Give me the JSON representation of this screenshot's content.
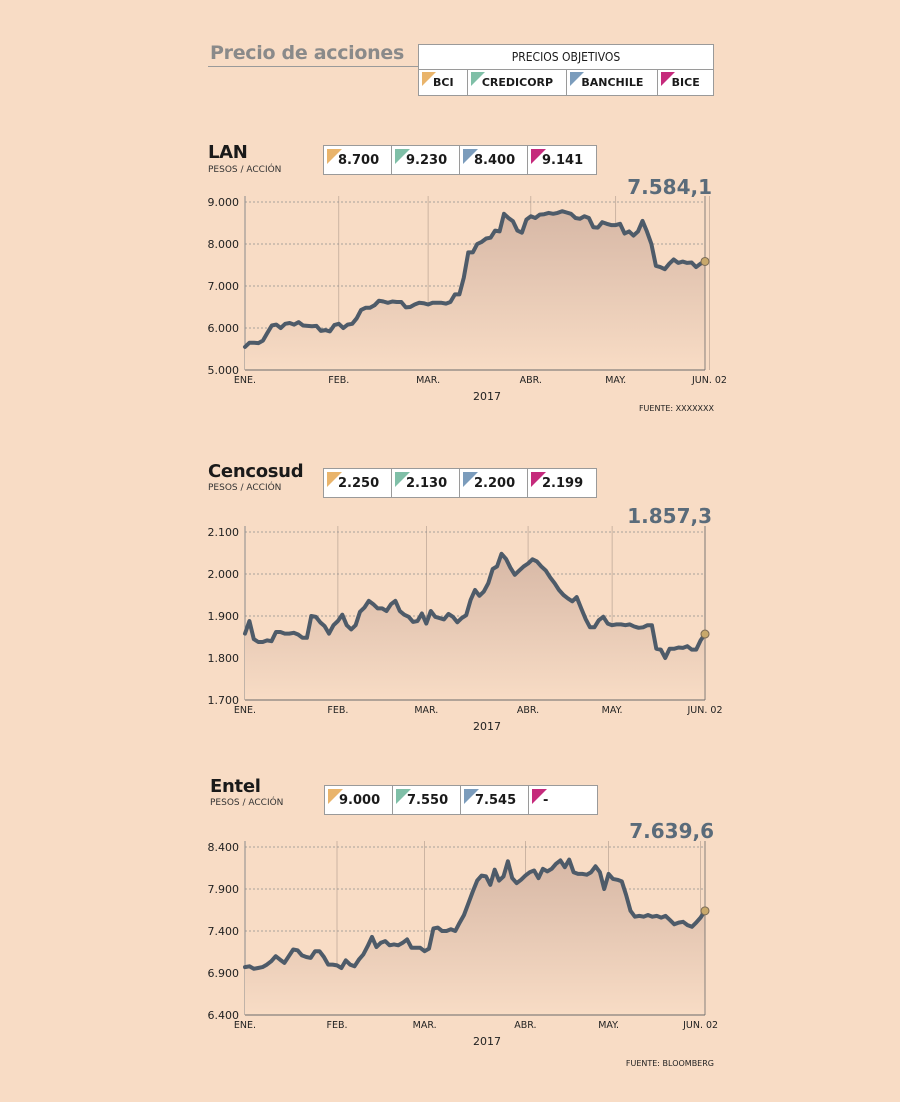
{
  "header": {
    "title": "Precio de acciones"
  },
  "legend": {
    "title": "PRECIOS OBJETIVOS",
    "items": [
      {
        "label": "BCI",
        "color": "#e9b46b"
      },
      {
        "label": "CREDICORP",
        "color": "#7fbfa7"
      },
      {
        "label": "BANCHILE",
        "color": "#7b9cbc"
      },
      {
        "label": "BICE",
        "color": "#c52a7c"
      }
    ]
  },
  "colors": {
    "background": "#f8dcc5",
    "line": "#4e5b69",
    "area_top": "#d7b8a6",
    "marker": "#c8a86b"
  },
  "charts": [
    {
      "name": "LAN",
      "unit": "PESOS / ACCIÓN",
      "targets": [
        "8.700",
        "9.230",
        "8.400",
        "9.141"
      ],
      "last_value": "7.584,1",
      "source": "FUENTE: XXXXXXX"
    },
    {
      "name": "Cencosud",
      "unit": "PESOS / ACCIÓN",
      "targets": [
        "2.250",
        "2.130",
        "2.200",
        "2.199"
      ],
      "last_value": "1.857,3",
      "source": ""
    },
    {
      "name": "Entel",
      "unit": "PESOS / ACCIÓN",
      "targets": [
        "9.000",
        "7.550",
        "7.545",
        "-"
      ],
      "last_value": "7.639,6",
      "source": "FUENTE: BLOOMBERG"
    }
  ],
  "chart_data": [
    {
      "type": "area",
      "title": "LAN",
      "ylabel": "PESOS / ACCIÓN",
      "xlabel": "2017",
      "ylim": [
        5000,
        9000
      ],
      "yticks": [
        "9.000",
        "8.000",
        "7.000",
        "6.000",
        "5.000"
      ],
      "ytick_values": [
        9000,
        8000,
        7000,
        6000,
        5000
      ],
      "xticks": [
        "ENE.",
        "FEB.",
        "MAR.",
        "ABR.",
        "MAY.",
        "JUN. 02"
      ],
      "xtick_positions": [
        0,
        21,
        41,
        64,
        83,
        104
      ],
      "grid": true,
      "series": [
        {
          "values": [
            5550,
            5650,
            5650,
            5640,
            5700,
            5880,
            6060,
            6080,
            6000,
            6100,
            6120,
            6080,
            6140,
            6060,
            6050,
            6040,
            6050,
            5930,
            5950,
            5920,
            6070,
            6100,
            6000,
            6080,
            6100,
            6230,
            6430,
            6480,
            6480,
            6540,
            6650,
            6630,
            6600,
            6630,
            6620,
            6620,
            6490,
            6500,
            6560,
            6600,
            6590,
            6560,
            6600,
            6600,
            6600,
            6580,
            6620,
            6800,
            6800,
            7200,
            7800,
            7800,
            8000,
            8050,
            8130,
            8150,
            8320,
            8300,
            8720,
            8620,
            8540,
            8320,
            8270,
            8580,
            8660,
            8620,
            8700,
            8710,
            8740,
            8720,
            8740,
            8780,
            8750,
            8720,
            8620,
            8600,
            8660,
            8620,
            8400,
            8390,
            8520,
            8480,
            8450,
            8450,
            8480,
            8250,
            8300,
            8200,
            8300,
            8550,
            8300,
            8000,
            7480,
            7450,
            7400,
            7530,
            7630,
            7550,
            7580,
            7550,
            7560,
            7450,
            7530,
            7584
          ]
        }
      ]
    },
    {
      "type": "area",
      "title": "Cencosud",
      "ylabel": "PESOS / ACCIÓN",
      "xlabel": "2017",
      "ylim": [
        1700,
        2100
      ],
      "yticks": [
        "2.100",
        "2.000",
        "1.900",
        "1.800",
        "1.700"
      ],
      "ytick_values": [
        2100,
        2000,
        1900,
        1800,
        1700
      ],
      "xticks": [
        "ENE.",
        "FEB.",
        "MAR.",
        "ABR.",
        "MAY.",
        "JUN. 02"
      ],
      "xtick_positions": [
        0,
        21,
        41,
        64,
        83,
        104
      ],
      "grid": true,
      "series": [
        {
          "values": [
            1858,
            1888,
            1845,
            1838,
            1838,
            1842,
            1840,
            1862,
            1862,
            1858,
            1858,
            1860,
            1856,
            1848,
            1848,
            1900,
            1898,
            1885,
            1876,
            1858,
            1878,
            1888,
            1903,
            1878,
            1868,
            1878,
            1910,
            1920,
            1936,
            1928,
            1918,
            1918,
            1912,
            1928,
            1936,
            1912,
            1903,
            1898,
            1886,
            1888,
            1906,
            1882,
            1912,
            1898,
            1895,
            1892,
            1905,
            1898,
            1885,
            1895,
            1902,
            1938,
            1962,
            1948,
            1958,
            1978,
            2012,
            2018,
            2048,
            2036,
            2015,
            1998,
            2008,
            2018,
            2025,
            2035,
            2030,
            2018,
            2008,
            1992,
            1978,
            1962,
            1950,
            1942,
            1935,
            1945,
            1918,
            1893,
            1873,
            1873,
            1890,
            1898,
            1882,
            1878,
            1880,
            1880,
            1878,
            1880,
            1875,
            1872,
            1873,
            1878,
            1878,
            1822,
            1820,
            1800,
            1822,
            1822,
            1825,
            1824,
            1828,
            1820,
            1820,
            1842,
            1857
          ]
        }
      ]
    },
    {
      "type": "area",
      "title": "Entel",
      "ylabel": "PESOS / ACCIÓN",
      "xlabel": "2017",
      "ylim": [
        6400,
        8400
      ],
      "yticks": [
        "8.400",
        "7.900",
        "7.400",
        "6.900",
        "6.400"
      ],
      "ytick_values": [
        8400,
        7900,
        7400,
        6900,
        6400
      ],
      "xticks": [
        "ENE.",
        "FEB.",
        "MAR.",
        "ABR.",
        "MAY.",
        "JUN. 02"
      ],
      "xtick_positions": [
        0,
        21,
        41,
        64,
        83,
        104
      ],
      "grid": true,
      "series": [
        {
          "values": [
            6970,
            6980,
            6950,
            6960,
            6970,
            7000,
            7040,
            7100,
            7060,
            7020,
            7100,
            7180,
            7170,
            7110,
            7090,
            7080,
            7160,
            7160,
            7090,
            7000,
            7000,
            6990,
            6960,
            7050,
            7000,
            6980,
            7060,
            7120,
            7220,
            7330,
            7210,
            7260,
            7280,
            7230,
            7240,
            7230,
            7260,
            7300,
            7200,
            7200,
            7200,
            7160,
            7190,
            7430,
            7440,
            7400,
            7400,
            7420,
            7400,
            7500,
            7590,
            7730,
            7870,
            8000,
            8060,
            8050,
            7950,
            8130,
            8000,
            8050,
            8230,
            8030,
            7970,
            8010,
            8060,
            8100,
            8120,
            8030,
            8140,
            8110,
            8140,
            8200,
            8240,
            8160,
            8250,
            8100,
            8080,
            8080,
            8070,
            8100,
            8170,
            8100,
            7900,
            8080,
            8020,
            8010,
            7990,
            7830,
            7640,
            7570,
            7580,
            7570,
            7590,
            7570,
            7580,
            7560,
            7580,
            7530,
            7480,
            7500,
            7510,
            7470,
            7450,
            7500,
            7560,
            7640
          ]
        }
      ]
    }
  ]
}
